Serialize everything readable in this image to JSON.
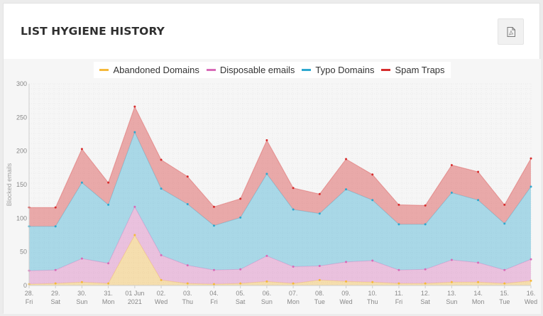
{
  "card": {
    "title": "LIST HYGIENE HISTORY"
  },
  "toolbar": {
    "export_icon": "pdf-file-icon"
  },
  "colors": {
    "abandoned": "#f5b93b",
    "disposable": "#d86bb8",
    "typo": "#2ea8cf",
    "spam": "#d62d2d"
  },
  "chart_data": {
    "type": "area",
    "stacked": true,
    "ylabel": "Blocked emails",
    "ylim": [
      0,
      300
    ],
    "yticks": [
      0,
      50,
      100,
      150,
      200,
      250,
      300
    ],
    "grid": true,
    "legend_position": "top",
    "categories": [
      [
        "28.",
        "Fri"
      ],
      [
        "29.",
        "Sat"
      ],
      [
        "30.",
        "Sun"
      ],
      [
        "31.",
        "Mon"
      ],
      [
        "01 Jun",
        "2021"
      ],
      [
        "02.",
        "Wed"
      ],
      [
        "03.",
        "Thu"
      ],
      [
        "04.",
        "Fri"
      ],
      [
        "05.",
        "Sat"
      ],
      [
        "06.",
        "Sun"
      ],
      [
        "07.",
        "Mon"
      ],
      [
        "08.",
        "Tue"
      ],
      [
        "09.",
        "Wed"
      ],
      [
        "10.",
        "Thu"
      ],
      [
        "11.",
        "Fri"
      ],
      [
        "12.",
        "Sat"
      ],
      [
        "13.",
        "Sun"
      ],
      [
        "14.",
        "Mon"
      ],
      [
        "15.",
        "Tue"
      ],
      [
        "16.",
        "Wed"
      ]
    ],
    "series": [
      {
        "name": "Abandoned Domains",
        "key": "abandoned",
        "values": [
          2,
          3,
          5,
          3,
          75,
          8,
          3,
          2,
          3,
          6,
          3,
          8,
          6,
          5,
          3,
          3,
          5,
          5,
          3,
          7
        ]
      },
      {
        "name": "Disposable emails",
        "key": "disposable",
        "values": [
          20,
          20,
          35,
          30,
          42,
          37,
          27,
          21,
          21,
          38,
          25,
          21,
          29,
          32,
          20,
          21,
          33,
          29,
          20,
          32
        ]
      },
      {
        "name": "Typo Domains",
        "key": "typo",
        "values": [
          66,
          65,
          113,
          87,
          111,
          99,
          91,
          66,
          77,
          122,
          85,
          78,
          108,
          90,
          68,
          67,
          100,
          93,
          69,
          108
        ]
      },
      {
        "name": "Spam Traps",
        "key": "spam",
        "values": [
          28,
          28,
          50,
          33,
          38,
          43,
          41,
          28,
          28,
          50,
          32,
          29,
          45,
          38,
          29,
          28,
          41,
          42,
          28,
          42
        ]
      }
    ]
  }
}
